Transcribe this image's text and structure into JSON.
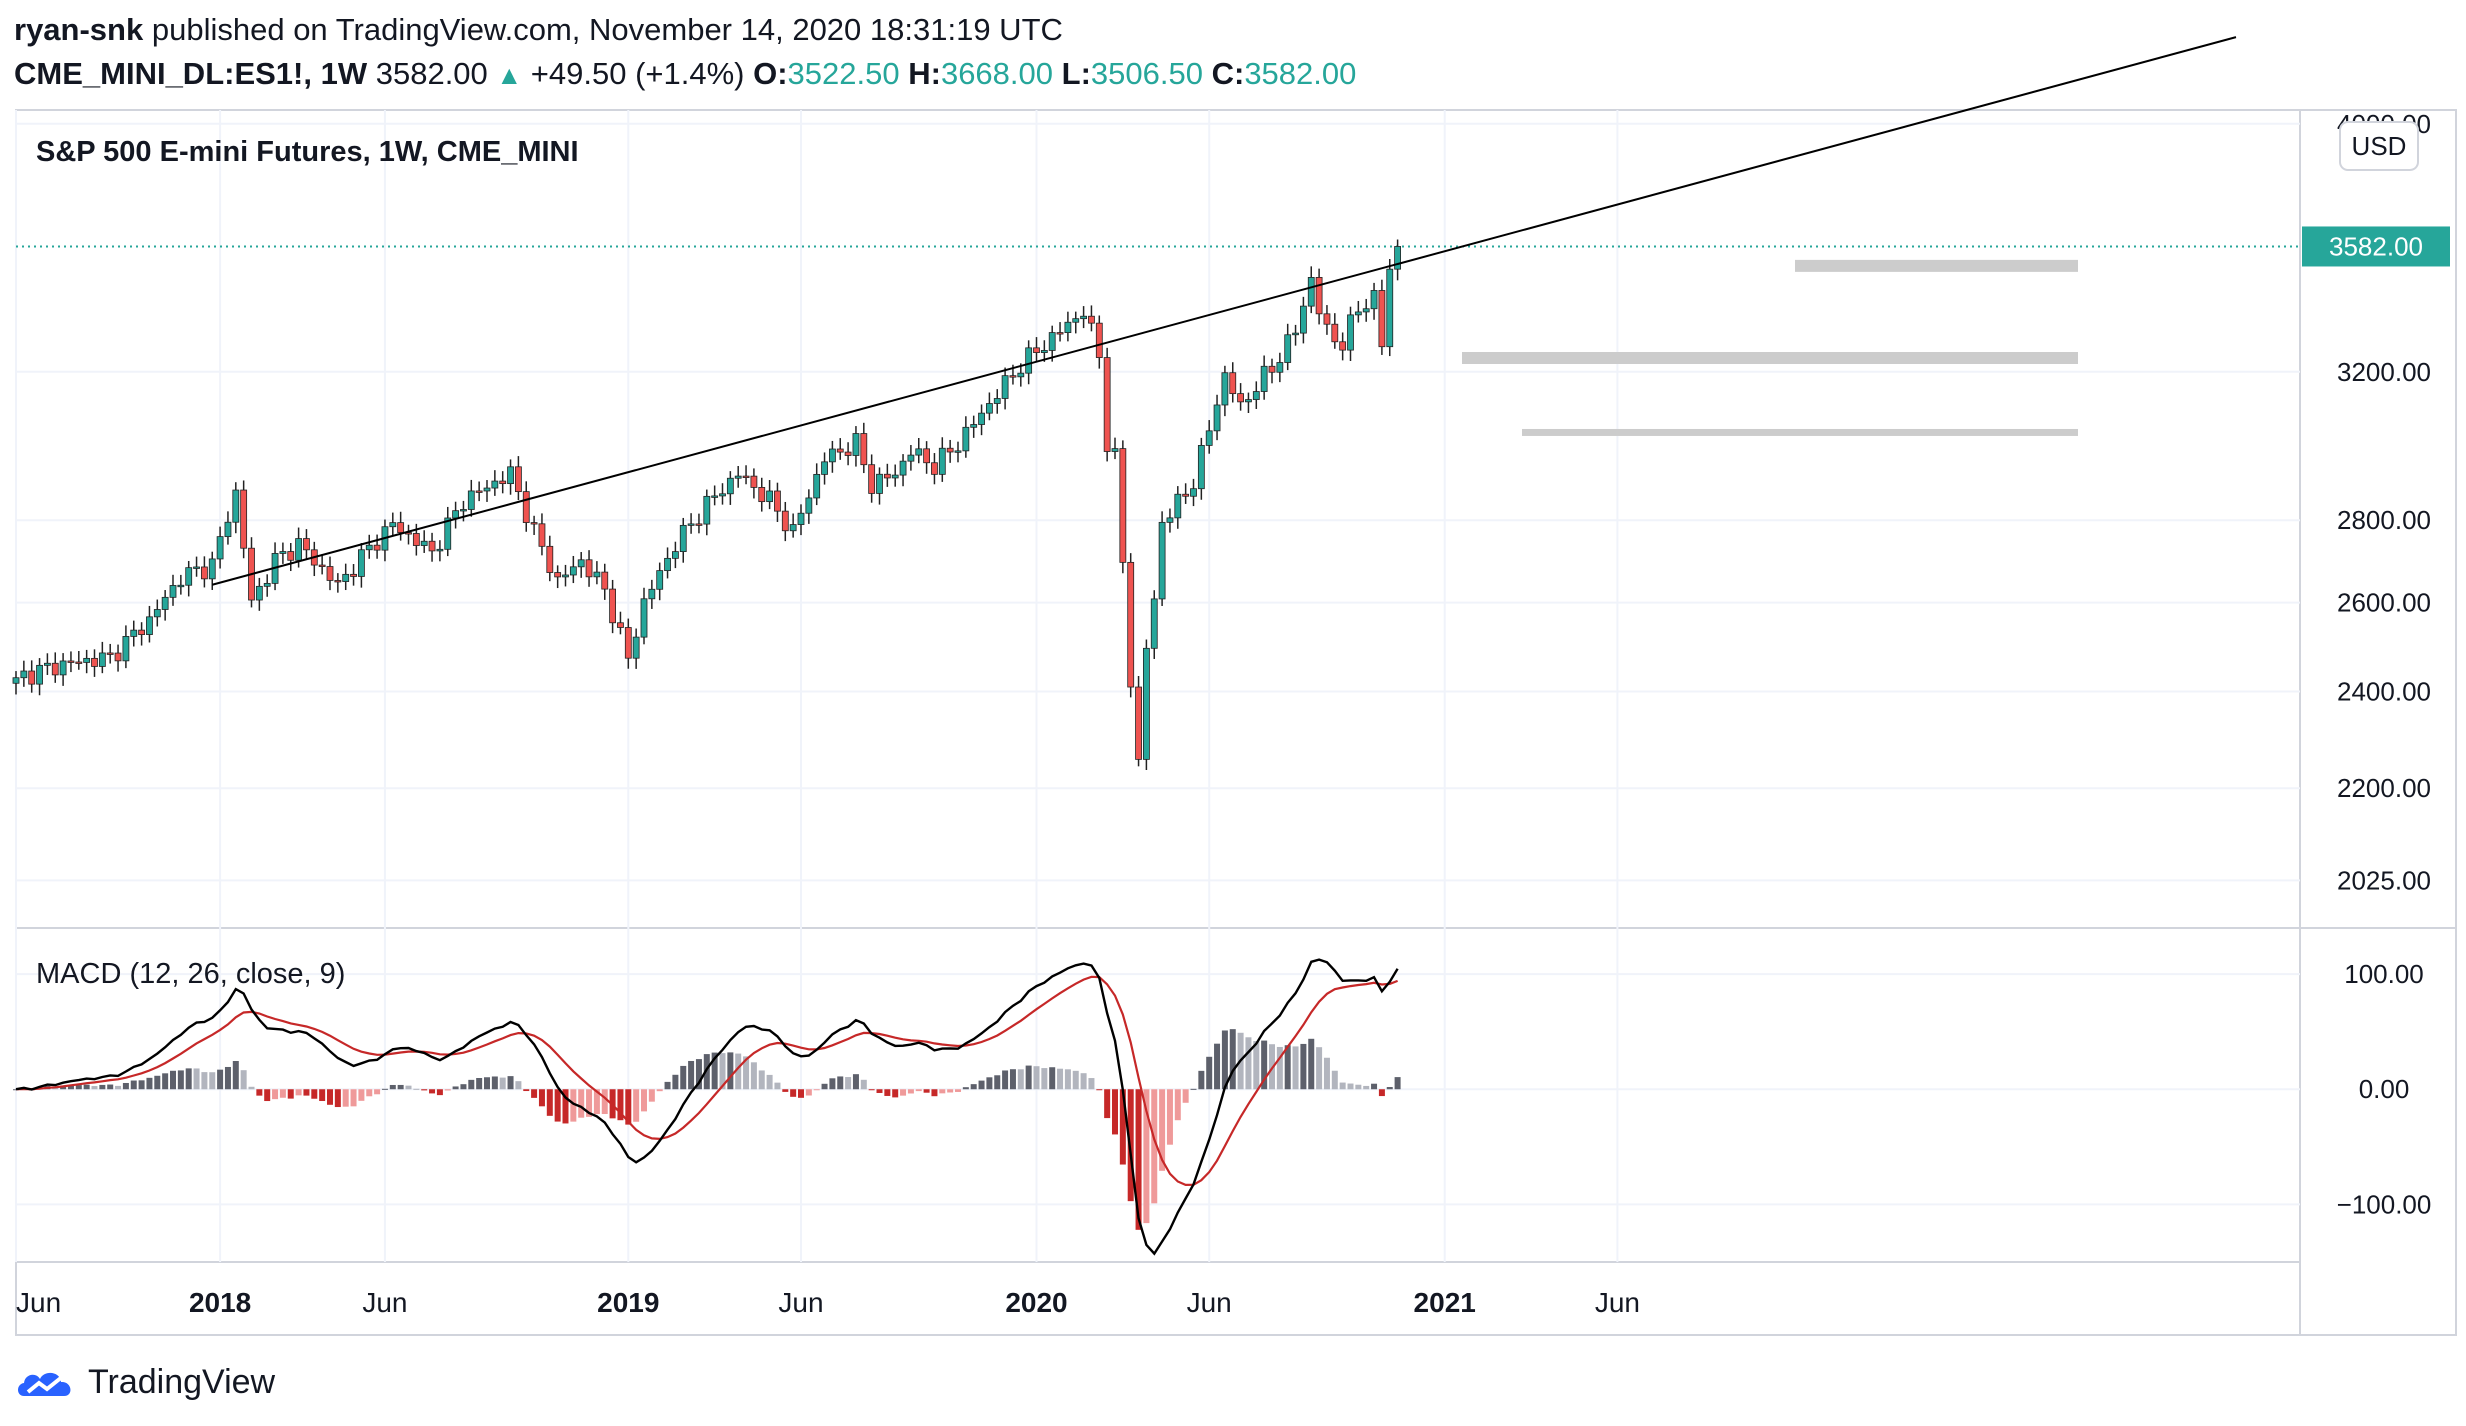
{
  "header": {
    "author": "ryan-snk",
    "published_text": "published on TradingView.com, November 14, 2020 18:31:19 UTC",
    "symbol": "CME_MINI_DL:ES1!, 1W",
    "close_value": "3582.00",
    "change": "+49.50 (+1.4%)",
    "open_label": "O:",
    "open": "3522.50",
    "high_label": "H:",
    "high": "3668.00",
    "low_label": "L:",
    "low": "3506.50",
    "close_label": "C:",
    "close": "3582.00"
  },
  "chart_title": "S&P 500 E-mini Futures, 1W, CME_MINI",
  "currency_button": "USD",
  "price_badge": "3582.00",
  "brand": "TradingView",
  "colors": {
    "up": "#26a69a",
    "down": "#ef5350",
    "macd": "#000000",
    "signal": "#c62828",
    "zone": "#cccccc"
  },
  "chart_data": [
    {
      "type": "candlestick",
      "title": "S&P 500 E-mini Futures, 1W, CME_MINI",
      "y_scale": "log",
      "ylim": [
        1940,
        4050
      ],
      "y_ticks": [
        "4000.00",
        "3200.00",
        "2800.00",
        "2600.00",
        "2400.00",
        "2200.00",
        "2025.00"
      ],
      "x_ticks": [
        "Jun",
        "2018",
        "Jun",
        "2019",
        "Jun",
        "2020",
        "Jun",
        "2021",
        "Jun"
      ],
      "anchors": [
        {
          "w": 0,
          "p": 2430
        },
        {
          "w": 6,
          "p": 2460
        },
        {
          "w": 12,
          "p": 2475
        },
        {
          "w": 17,
          "p": 2560
        },
        {
          "w": 21,
          "p": 2660
        },
        {
          "w": 25,
          "p": 2690
        },
        {
          "w": 28,
          "p": 2870
        },
        {
          "w": 30,
          "p": 2600
        },
        {
          "w": 33,
          "p": 2700
        },
        {
          "w": 36,
          "p": 2740
        },
        {
          "w": 41,
          "p": 2640
        },
        {
          "w": 45,
          "p": 2730
        },
        {
          "w": 48,
          "p": 2790
        },
        {
          "w": 53,
          "p": 2720
        },
        {
          "w": 57,
          "p": 2850
        },
        {
          "w": 63,
          "p": 2920
        },
        {
          "w": 66,
          "p": 2770
        },
        {
          "w": 69,
          "p": 2650
        },
        {
          "w": 72,
          "p": 2700
        },
        {
          "w": 75,
          "p": 2630
        },
        {
          "w": 78,
          "p": 2470
        },
        {
          "w": 80,
          "p": 2600
        },
        {
          "w": 84,
          "p": 2740
        },
        {
          "w": 88,
          "p": 2840
        },
        {
          "w": 92,
          "p": 2920
        },
        {
          "w": 96,
          "p": 2850
        },
        {
          "w": 99,
          "p": 2770
        },
        {
          "w": 103,
          "p": 2960
        },
        {
          "w": 107,
          "p": 3000
        },
        {
          "w": 109,
          "p": 2890
        },
        {
          "w": 112,
          "p": 2920
        },
        {
          "w": 114,
          "p": 2980
        },
        {
          "w": 117,
          "p": 2940
        },
        {
          "w": 120,
          "p": 3000
        },
        {
          "w": 124,
          "p": 3110
        },
        {
          "w": 128,
          "p": 3220
        },
        {
          "w": 132,
          "p": 3300
        },
        {
          "w": 136,
          "p": 3380
        },
        {
          "w": 138,
          "p": 3250
        },
        {
          "w": 139,
          "p": 3000
        },
        {
          "w": 140,
          "p": 2960
        },
        {
          "w": 141,
          "p": 2700
        },
        {
          "w": 142,
          "p": 2420
        },
        {
          "w": 143,
          "p": 2250
        },
        {
          "w": 144,
          "p": 2500
        },
        {
          "w": 145,
          "p": 2600
        },
        {
          "w": 146,
          "p": 2800
        },
        {
          "w": 148,
          "p": 2840
        },
        {
          "w": 150,
          "p": 2900
        },
        {
          "w": 152,
          "p": 3040
        },
        {
          "w": 154,
          "p": 3190
        },
        {
          "w": 156,
          "p": 3100
        },
        {
          "w": 158,
          "p": 3160
        },
        {
          "w": 160,
          "p": 3210
        },
        {
          "w": 163,
          "p": 3320
        },
        {
          "w": 165,
          "p": 3480
        },
        {
          "w": 166,
          "p": 3380
        },
        {
          "w": 167,
          "p": 3320
        },
        {
          "w": 169,
          "p": 3280
        },
        {
          "w": 171,
          "p": 3390
        },
        {
          "w": 173,
          "p": 3420
        },
        {
          "w": 174,
          "p": 3280
        },
        {
          "w": 175,
          "p": 3510
        },
        {
          "w": 176,
          "p": 3582
        }
      ],
      "trendline": [
        {
          "w": 25,
          "p": 2690
        },
        {
          "w": 176,
          "p": 3590
        }
      ],
      "zones": [
        3520,
        3240,
        3030
      ]
    },
    {
      "type": "histogram+line",
      "title": "MACD (12, 26, close, 9)",
      "ylim": [
        -150,
        140
      ],
      "y_ticks": [
        "100.00",
        "0.00",
        "−100.00"
      ]
    }
  ]
}
